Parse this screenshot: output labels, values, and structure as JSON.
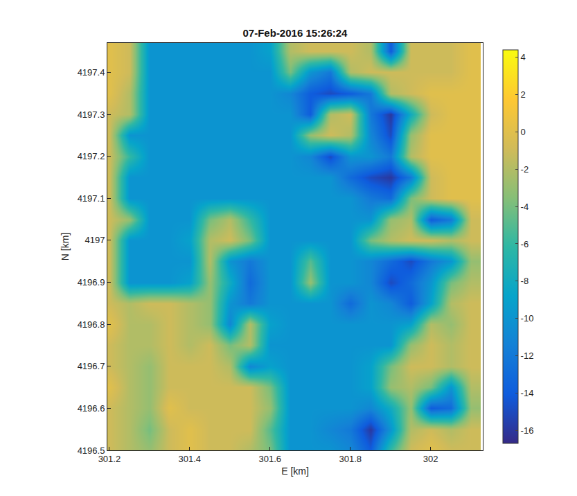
{
  "chart_data": {
    "type": "heatmap",
    "title": "07-Feb-2016 15:26:24",
    "x_label": "E [km]",
    "y_label": "N [km]",
    "x": [
      301.2,
      301.25,
      301.3,
      301.35,
      301.4,
      301.45,
      301.5,
      301.55,
      301.6,
      301.65,
      301.7,
      301.75,
      301.8,
      301.85,
      301.9,
      301.95,
      302.0,
      302.05,
      302.1
    ],
    "y": [
      4196.5,
      4196.55,
      4196.6,
      4196.65,
      4196.7,
      4196.75,
      4196.8,
      4196.85,
      4196.9,
      4196.95,
      4197.0,
      4197.05,
      4197.1,
      4197.15,
      4197.2,
      4197.25,
      4197.3,
      4197.35,
      4197.4,
      4197.45
    ],
    "z": [
      [
        -1,
        -2,
        -3,
        -1,
        0,
        -1,
        -1,
        -2,
        -4,
        -10,
        -10,
        -10,
        -11,
        -14,
        -6,
        -1,
        0,
        -1,
        -1
      ],
      [
        -1,
        -2,
        -4,
        -1,
        0,
        -1,
        -1,
        -1,
        -5,
        -10,
        -10,
        -11,
        -12,
        -16,
        -10,
        -2,
        -1,
        -2,
        -1
      ],
      [
        -1,
        -2,
        -3,
        0,
        -1,
        -1,
        -1,
        -1,
        -3,
        -10,
        -10,
        -10,
        -10,
        -11,
        -8,
        -3,
        -14,
        -13,
        -3
      ],
      [
        0,
        -2,
        -3,
        -1,
        -1,
        -1,
        -1,
        -1,
        -4,
        -10,
        -10,
        -10,
        -10,
        -9,
        -3,
        -2,
        -4,
        -10,
        -2
      ],
      [
        -1,
        -2,
        -3,
        -1,
        -1,
        -1,
        -2,
        -11,
        -9,
        -10,
        -10,
        -10,
        -10,
        -9,
        -4,
        -1,
        -1,
        -2,
        -1
      ],
      [
        -1,
        -2,
        -2,
        -1,
        -2,
        -1,
        -4,
        -2,
        -10,
        -10,
        -10,
        -10,
        -10,
        -10,
        -10,
        -3,
        -1,
        -2,
        -1
      ],
      [
        0,
        -2,
        -2,
        -1,
        -2,
        -3,
        -11,
        -2,
        -9,
        -10,
        -10,
        -10,
        -10,
        -10,
        -10,
        -9,
        -2,
        -3,
        -1
      ],
      [
        -1,
        -2,
        -1,
        -1,
        -2,
        -3,
        -10,
        -12,
        -10,
        -10,
        -10,
        -10,
        -13,
        -10,
        -11,
        -14,
        -9,
        -2,
        -1
      ],
      [
        -1,
        -10,
        -10,
        -10,
        -9,
        -3,
        -8,
        -13,
        -10,
        -10,
        -3,
        -10,
        -10,
        -11,
        -15,
        -13,
        -10,
        -4,
        -2
      ],
      [
        -1,
        -10,
        -10,
        -10,
        -10,
        -2,
        -10,
        -12,
        -10,
        -10,
        -5,
        -10,
        -10,
        -11,
        -13,
        -15,
        -12,
        -10,
        -3
      ],
      [
        -1,
        -10,
        -10,
        -10,
        -9,
        -2,
        -1,
        -4,
        -10,
        -10,
        -10,
        -10,
        -10,
        -4,
        -2,
        -1,
        -1,
        -2,
        -1
      ],
      [
        -1,
        -3,
        -10,
        -10,
        -10,
        -4,
        -2,
        -6,
        -10,
        -10,
        -10,
        -10,
        -10,
        -10,
        -3,
        -2,
        -14,
        -12,
        -1
      ],
      [
        -1,
        -10,
        -10,
        -10,
        -10,
        -10,
        -10,
        -10,
        -10,
        -10,
        -10,
        -10,
        -10,
        -12,
        -13,
        -4,
        -1,
        0,
        0
      ],
      [
        -1,
        -10,
        -10,
        -10,
        -10,
        -10,
        -10,
        -10,
        -10,
        -10,
        -10,
        -10,
        -13,
        -15,
        -16,
        -12,
        -1,
        0,
        0
      ],
      [
        -1,
        -6,
        -10,
        -10,
        -10,
        -10,
        -10,
        -10,
        -10,
        -10,
        -11,
        -15,
        -10,
        -10,
        -12,
        -2,
        0,
        0,
        0
      ],
      [
        -1,
        -10,
        -10,
        -10,
        -10,
        -10,
        -10,
        -10,
        -10,
        -10,
        -3,
        -1,
        -2,
        -11,
        -15,
        -3,
        0,
        0,
        0
      ],
      [
        -1,
        -2,
        -10,
        -10,
        -10,
        -10,
        -10,
        -10,
        -10,
        -10,
        -14,
        -2,
        -1,
        -12,
        -16,
        -8,
        -1,
        0,
        0
      ],
      [
        0,
        -2,
        -10,
        -10,
        -10,
        -10,
        -10,
        -10,
        -10,
        -11,
        -14,
        -15,
        -14,
        -12,
        -2,
        -1,
        0,
        0,
        0
      ],
      [
        0,
        -1,
        -10,
        -10,
        -10,
        -10,
        -10,
        -10,
        -10,
        -4,
        -10,
        -12,
        -2,
        -1,
        -1,
        -1,
        -1,
        -1,
        0
      ],
      [
        0,
        -1,
        -10,
        -10,
        -10,
        -10,
        -10,
        -10,
        -9,
        -2,
        -1,
        -1,
        -1,
        -2,
        -14,
        -1,
        -1,
        -1,
        0
      ]
    ],
    "xlim": [
      301.195,
      302.13
    ],
    "ylim": [
      4196.5,
      4197.47
    ],
    "xticks": [
      301.2,
      301.4,
      301.6,
      301.8,
      302
    ],
    "yticks": [
      4196.5,
      4196.6,
      4196.7,
      4196.8,
      4196.9,
      4197,
      4197.1,
      4197.2,
      4197.3,
      4197.4
    ],
    "colorbar": {
      "range": [
        -16.7,
        4.4
      ],
      "ticks": [
        4,
        2,
        0,
        -2,
        -4,
        -6,
        -8,
        -10,
        -12,
        -14,
        -16
      ]
    }
  }
}
